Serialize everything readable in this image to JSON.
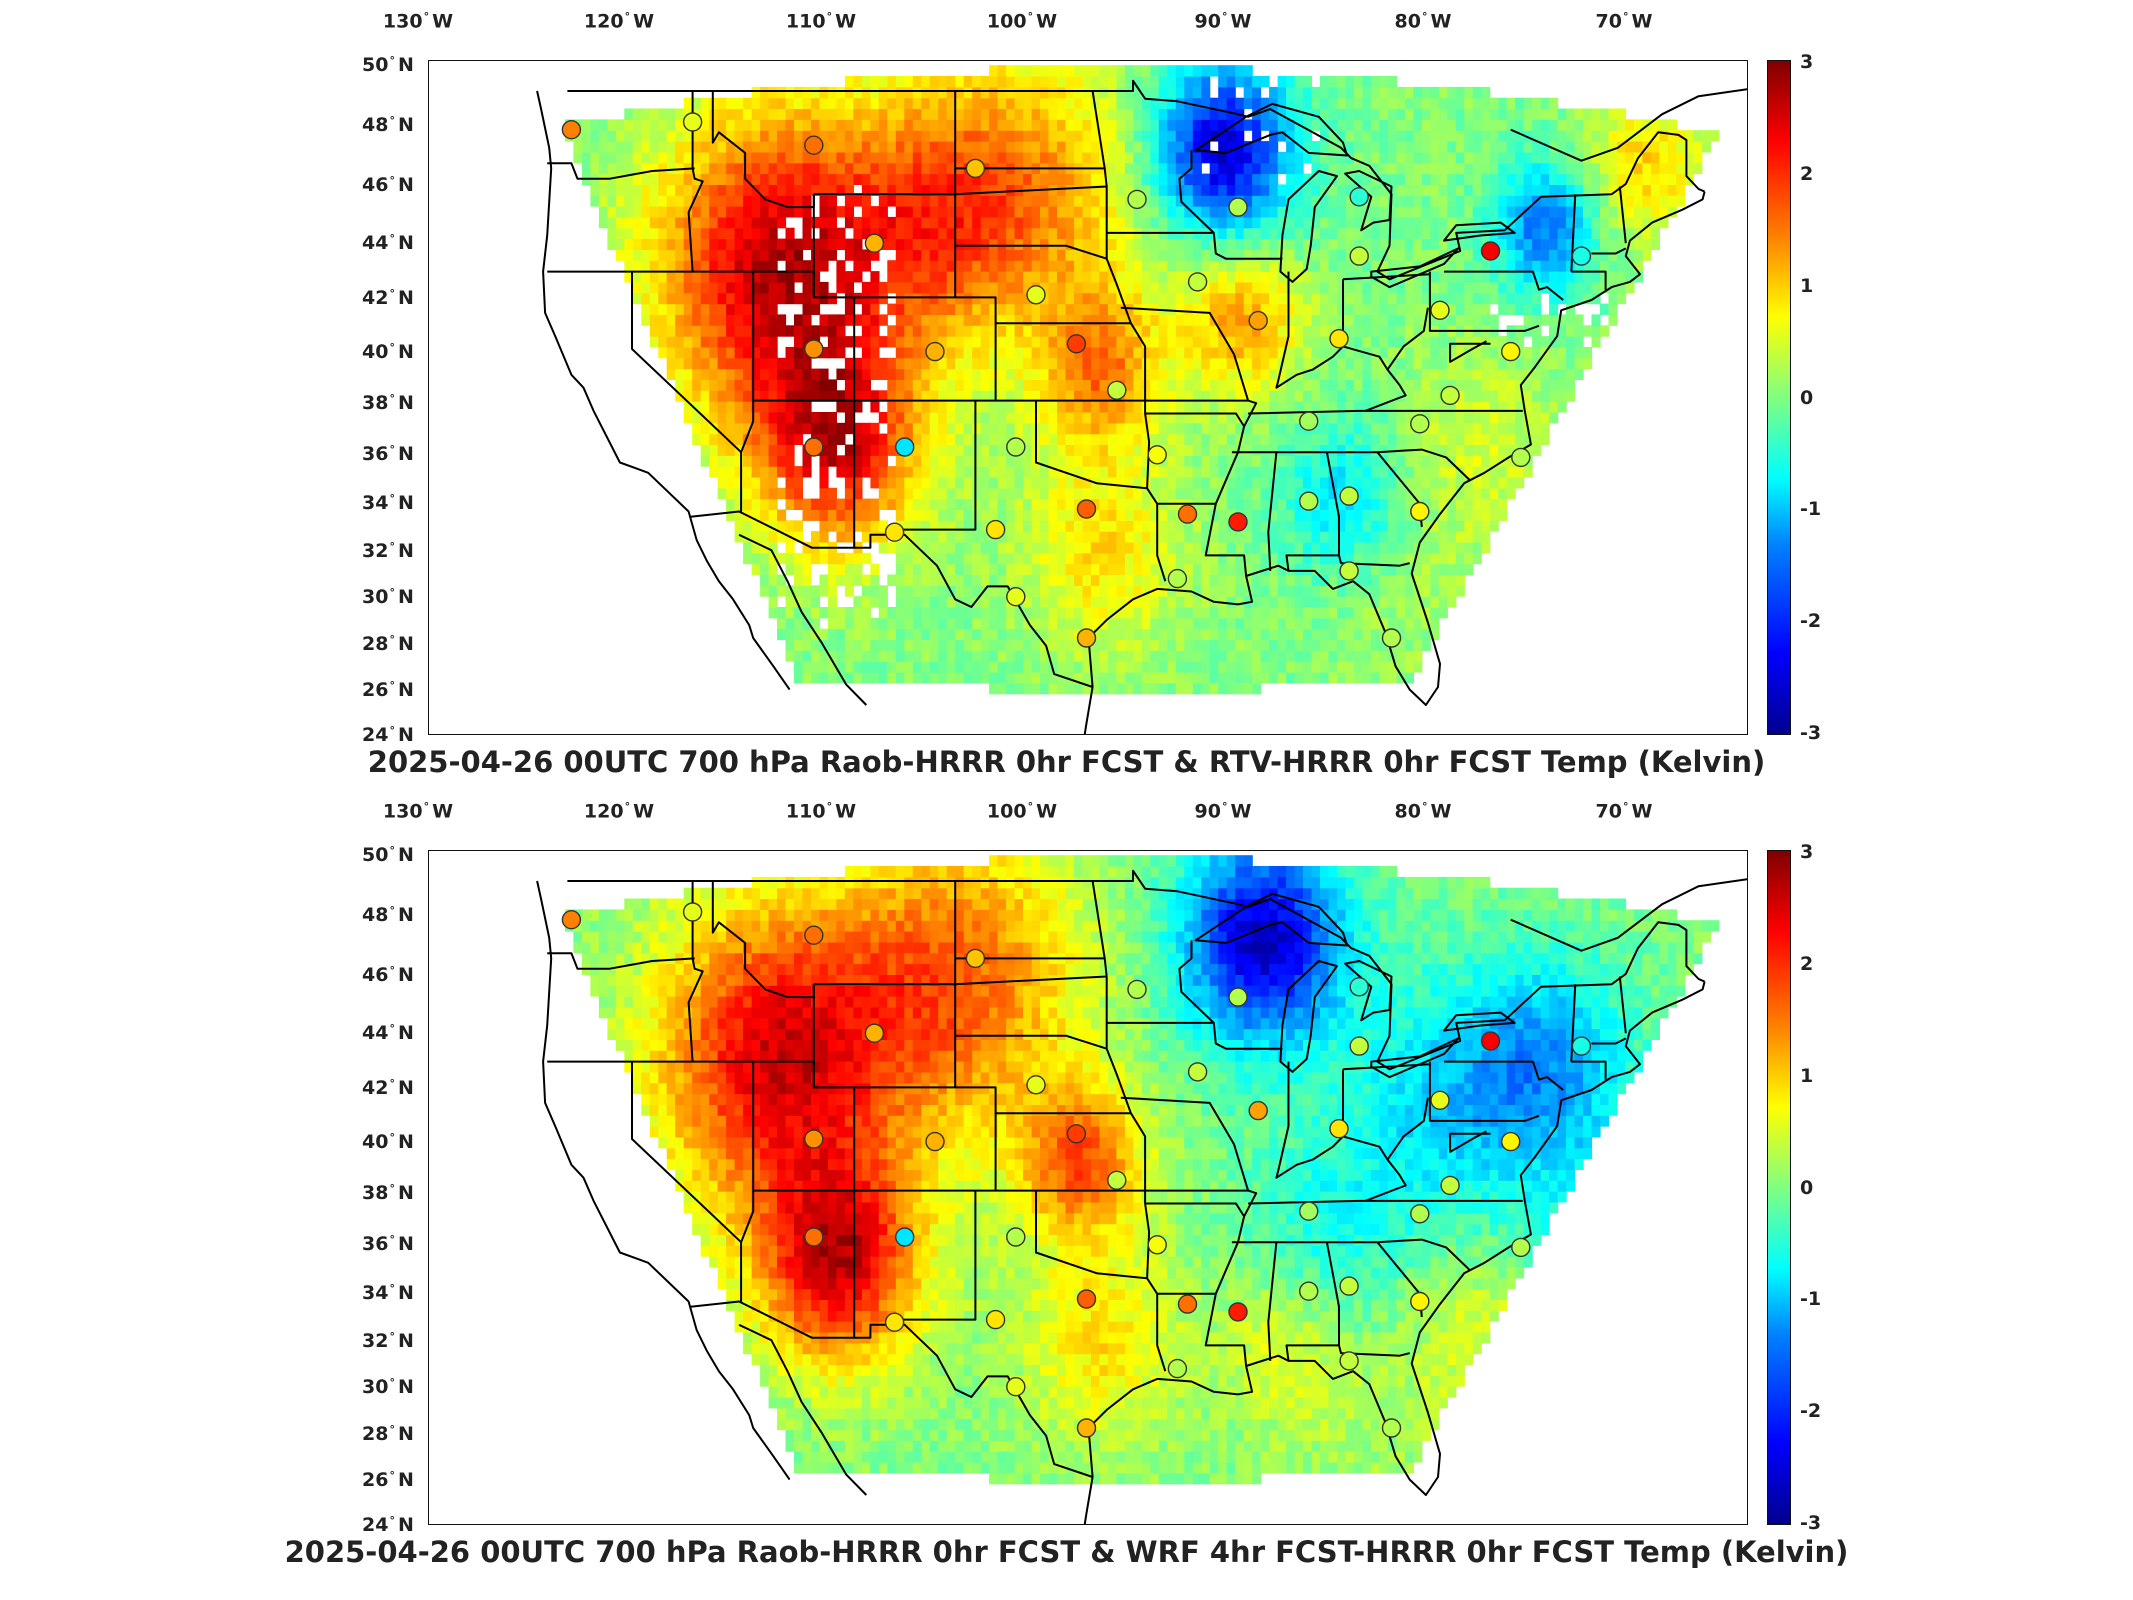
{
  "axes": {
    "lon_ticks": [
      {
        "value": "130",
        "hemi": "W"
      },
      {
        "value": "120",
        "hemi": "W"
      },
      {
        "value": "110",
        "hemi": "W"
      },
      {
        "value": "100",
        "hemi": "W"
      },
      {
        "value": "90",
        "hemi": "W"
      },
      {
        "value": "80",
        "hemi": "W"
      },
      {
        "value": "70",
        "hemi": "W"
      }
    ],
    "lat_ticks": [
      {
        "value": "50",
        "hemi": "N"
      },
      {
        "value": "48",
        "hemi": "N"
      },
      {
        "value": "46",
        "hemi": "N"
      },
      {
        "value": "44",
        "hemi": "N"
      },
      {
        "value": "42",
        "hemi": "N"
      },
      {
        "value": "40",
        "hemi": "N"
      },
      {
        "value": "38",
        "hemi": "N"
      },
      {
        "value": "36",
        "hemi": "N"
      },
      {
        "value": "34",
        "hemi": "N"
      },
      {
        "value": "32",
        "hemi": "N"
      },
      {
        "value": "30",
        "hemi": "N"
      },
      {
        "value": "28",
        "hemi": "N"
      },
      {
        "value": "26",
        "hemi": "N"
      },
      {
        "value": "24",
        "hemi": "N"
      }
    ]
  },
  "colorbar": {
    "ticks": [
      "3",
      "2",
      "1",
      "0",
      "-1",
      "-2",
      "-3"
    ],
    "range": [
      -3,
      3
    ],
    "colormap": "jet"
  },
  "panels": [
    {
      "title": "2025-04-26 00UTC 700 hPa Raob-HRRR 0hr FCST & RTV-HRRR 0hr FCST Temp (Kelvin)",
      "field": "RTV-HRRR 0hr FCST"
    },
    {
      "title": "2025-04-26 00UTC 700 hPa Raob-HRRR 0hr FCST & WRF 4hr FCST-HRRR 0hr FCST Temp (Kelvin)",
      "field": "WRF 4hr FCST"
    }
  ],
  "raob_stations": [
    {
      "lon": -123.0,
      "lat": 47.5,
      "value": 1.5
    },
    {
      "lon": -117.0,
      "lat": 47.8,
      "value": 0.6
    },
    {
      "lon": -111.0,
      "lat": 46.9,
      "value": 1.6
    },
    {
      "lon": -108.0,
      "lat": 43.1,
      "value": 1.2
    },
    {
      "lon": -103.0,
      "lat": 46.0,
      "value": 1.1
    },
    {
      "lon": -95.0,
      "lat": 44.8,
      "value": 0.3
    },
    {
      "lon": -90.0,
      "lat": 44.5,
      "value": 0.3
    },
    {
      "lon": -84.0,
      "lat": 44.9,
      "value": -0.5
    },
    {
      "lon": -84.0,
      "lat": 42.6,
      "value": 0.4
    },
    {
      "lon": -77.5,
      "lat": 42.8,
      "value": 2.3
    },
    {
      "lon": -73.0,
      "lat": 42.6,
      "value": -0.6
    },
    {
      "lon": -100.0,
      "lat": 41.1,
      "value": 0.6
    },
    {
      "lon": -92.0,
      "lat": 41.6,
      "value": 0.4
    },
    {
      "lon": -89.0,
      "lat": 40.1,
      "value": 1.3
    },
    {
      "lon": -85.0,
      "lat": 39.4,
      "value": 0.9
    },
    {
      "lon": -80.0,
      "lat": 40.5,
      "value": 0.6
    },
    {
      "lon": -76.5,
      "lat": 38.9,
      "value": 0.8
    },
    {
      "lon": -111.0,
      "lat": 39.0,
      "value": 1.4
    },
    {
      "lon": -105.0,
      "lat": 38.9,
      "value": 1.2
    },
    {
      "lon": -98.0,
      "lat": 39.2,
      "value": 1.9
    },
    {
      "lon": -96.0,
      "lat": 37.4,
      "value": 0.4
    },
    {
      "lon": -111.0,
      "lat": 35.2,
      "value": 1.6
    },
    {
      "lon": -106.5,
      "lat": 35.2,
      "value": -0.9
    },
    {
      "lon": -101.0,
      "lat": 35.2,
      "value": 0.3
    },
    {
      "lon": -94.0,
      "lat": 34.9,
      "value": 0.7
    },
    {
      "lon": -86.5,
      "lat": 36.2,
      "value": 0.2
    },
    {
      "lon": -81.0,
      "lat": 36.1,
      "value": 0.3
    },
    {
      "lon": -79.5,
      "lat": 37.2,
      "value": 0.4
    },
    {
      "lon": -76.0,
      "lat": 34.8,
      "value": 0.3
    },
    {
      "lon": -102.0,
      "lat": 32.0,
      "value": 0.9
    },
    {
      "lon": -97.5,
      "lat": 32.8,
      "value": 1.7
    },
    {
      "lon": -92.5,
      "lat": 32.6,
      "value": 1.6
    },
    {
      "lon": -90.0,
      "lat": 32.3,
      "value": 2.1
    },
    {
      "lon": -86.5,
      "lat": 33.1,
      "value": 0.3
    },
    {
      "lon": -84.5,
      "lat": 33.3,
      "value": 0.4
    },
    {
      "lon": -81.0,
      "lat": 32.7,
      "value": 0.8
    },
    {
      "lon": -107.0,
      "lat": 31.9,
      "value": 0.9
    },
    {
      "lon": -101.0,
      "lat": 29.4,
      "value": 0.6
    },
    {
      "lon": -93.0,
      "lat": 30.1,
      "value": 0.3
    },
    {
      "lon": -97.5,
      "lat": 27.8,
      "value": 1.2
    },
    {
      "lon": -84.5,
      "lat": 30.4,
      "value": 0.4
    },
    {
      "lon": -82.4,
      "lat": 27.8,
      "value": 0.3
    }
  ]
}
